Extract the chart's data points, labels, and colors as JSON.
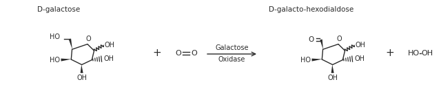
{
  "bg_color": "#ffffff",
  "text_color": "#2a2a2a",
  "label_dgalactose": "D-galactose",
  "label_dghexo": "D-galacto-hexodialdose",
  "label_enzyme_line1": "Galactose",
  "label_enzyme_line2": "Oxidase",
  "figsize": [
    6.4,
    1.58
  ],
  "dpi": 100,
  "fs_label": 7.5,
  "fs_mol": 7.0,
  "fs_plus": 11,
  "lw": 1.0
}
